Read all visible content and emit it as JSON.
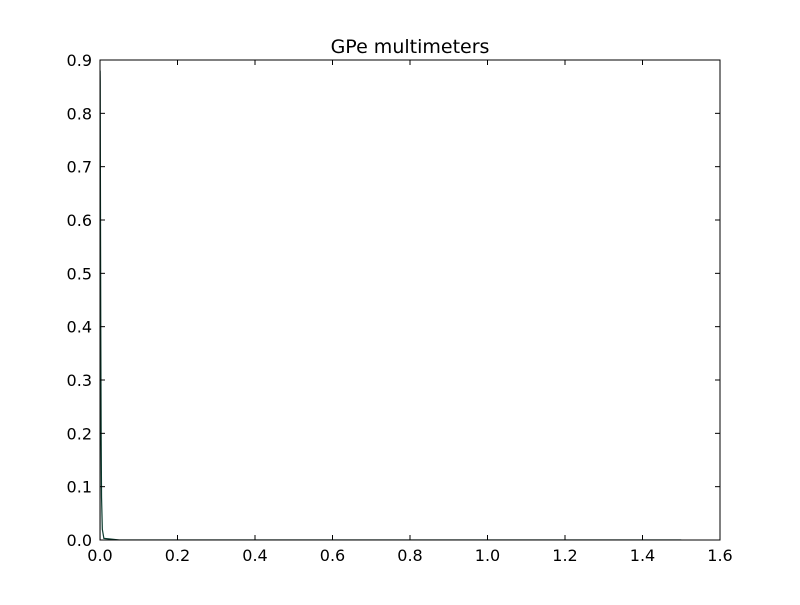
{
  "chart_data": {
    "type": "line",
    "title": "GPe multimeters",
    "xlabel": "",
    "ylabel": "",
    "xlim": [
      0.0,
      1.6
    ],
    "ylim": [
      0.0,
      0.9
    ],
    "x_ticks": [
      "0.0",
      "0.2",
      "0.4",
      "0.6",
      "0.8",
      "1.0",
      "1.2",
      "1.4",
      "1.6"
    ],
    "y_ticks": [
      "0.0",
      "0.1",
      "0.2",
      "0.3",
      "0.4",
      "0.5",
      "0.6",
      "0.7",
      "0.8",
      "0.9"
    ],
    "grid": false,
    "legend": "none",
    "series": [
      {
        "color": "#0b3b2e",
        "x": [
          0.0,
          0.0003,
          0.0006,
          0.001,
          0.0015,
          0.002,
          0.003,
          0.004,
          0.006,
          0.01,
          0.05,
          0.5,
          1.0,
          1.5
        ],
        "y": [
          0.0,
          0.88,
          0.86,
          0.7,
          0.55,
          0.4,
          0.2,
          0.08,
          0.02,
          0.003,
          0.0,
          0.0,
          0.0,
          0.0
        ]
      }
    ]
  }
}
